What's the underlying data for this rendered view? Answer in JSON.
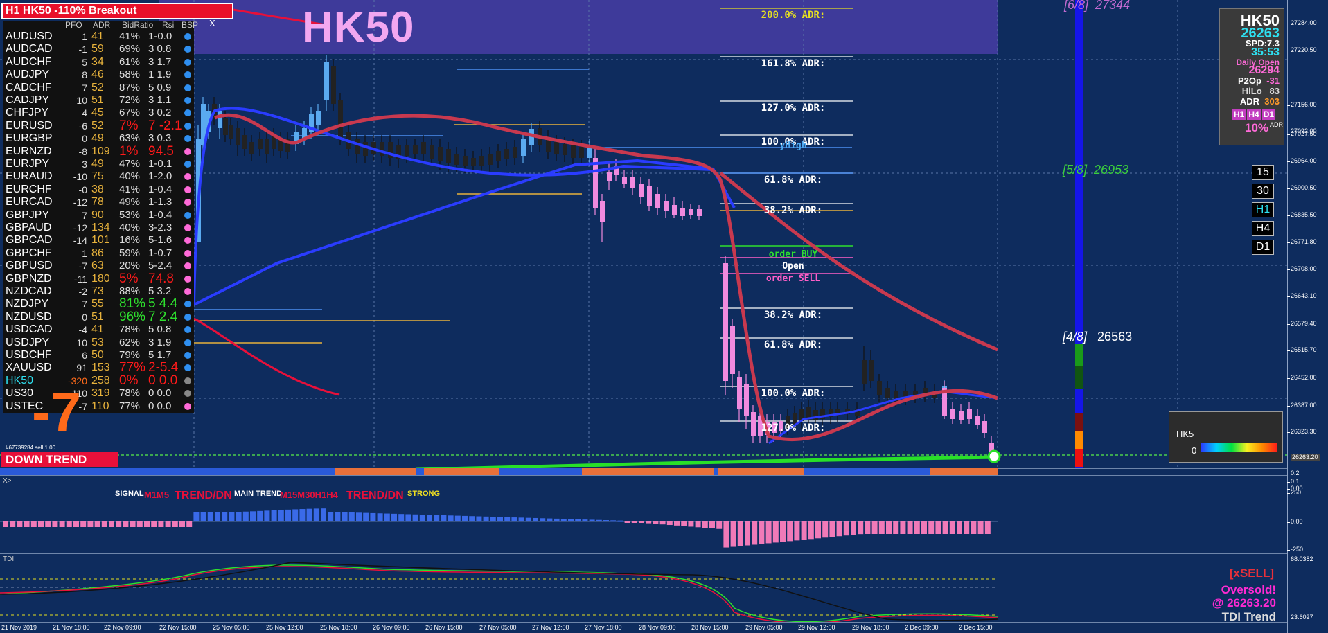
{
  "banner": {
    "text": "H1 HK50  -110% Breakout"
  },
  "symbol_title": "HK50",
  "scanner": {
    "headers": [
      "PFO",
      "ADR",
      "BidRatio",
      "Rsi",
      "BSP"
    ],
    "close_label": "X",
    "rows": [
      {
        "symbol": "AUDUSD",
        "pfo": "1",
        "adr": "41",
        "pct": "41%",
        "br": "1-0.0",
        "dot": "#2f8ff0"
      },
      {
        "symbol": "AUDCAD",
        "pfo": "-1",
        "adr": "59",
        "pct": "69%",
        "br": "3 0.8",
        "dot": "#2f8ff0"
      },
      {
        "symbol": "AUDCHF",
        "pfo": "5",
        "adr": "34",
        "pct": "61%",
        "br": "3 1.7",
        "dot": "#2f8ff0"
      },
      {
        "symbol": "AUDJPY",
        "pfo": "8",
        "adr": "46",
        "pct": "58%",
        "br": "1 1.9",
        "dot": "#2f8ff0"
      },
      {
        "symbol": "CADCHF",
        "pfo": "7",
        "adr": "52",
        "pct": "87%",
        "br": "5 0.9",
        "dot": "#2f8ff0"
      },
      {
        "symbol": "CADJPY",
        "pfo": "10",
        "adr": "51",
        "pct": "72%",
        "br": "3 1.1",
        "dot": "#2f8ff0"
      },
      {
        "symbol": "CHFJPY",
        "pfo": "4",
        "adr": "45",
        "pct": "67%",
        "br": "3 0.2",
        "dot": "#2f8ff0"
      },
      {
        "symbol": "EURUSD",
        "pfo": "-6",
        "adr": "52",
        "pct": "7%",
        "br": "7 -2.1",
        "dot": "#2f8ff0",
        "hot": true
      },
      {
        "symbol": "EURGBP",
        "pfo": "0",
        "adr": "49",
        "pct": "63%",
        "br": "3 0.3",
        "dot": "#2f8ff0"
      },
      {
        "symbol": "EURNZD",
        "pfo": "-8",
        "adr": "109",
        "pct": "1%",
        "br": "94.5",
        "dot": "#ff6ad8",
        "hot": true
      },
      {
        "symbol": "EURJPY",
        "pfo": "3",
        "adr": "49",
        "pct": "47%",
        "br": "1-0.1",
        "dot": "#2f8ff0"
      },
      {
        "symbol": "EURAUD",
        "pfo": "-10",
        "adr": "75",
        "pct": "40%",
        "br": "1-2.0",
        "dot": "#ff6ad8"
      },
      {
        "symbol": "EURCHF",
        "pfo": "-0",
        "adr": "38",
        "pct": "41%",
        "br": "1-0.4",
        "dot": "#ff6ad8"
      },
      {
        "symbol": "EURCAD",
        "pfo": "-12",
        "adr": "78",
        "pct": "49%",
        "br": "1-1.3",
        "dot": "#ff6ad8"
      },
      {
        "symbol": "GBPJPY",
        "pfo": "7",
        "adr": "90",
        "pct": "53%",
        "br": "1-0.4",
        "dot": "#2f8ff0"
      },
      {
        "symbol": "GBPAUD",
        "pfo": "-12",
        "adr": "134",
        "pct": "40%",
        "br": "3-2.3",
        "dot": "#ff6ad8"
      },
      {
        "symbol": "GBPCAD",
        "pfo": "-14",
        "adr": "101",
        "pct": "16%",
        "br": "5-1.6",
        "dot": "#ff6ad8"
      },
      {
        "symbol": "GBPCHF",
        "pfo": "1",
        "adr": "86",
        "pct": "59%",
        "br": "1-0.7",
        "dot": "#ff6ad8"
      },
      {
        "symbol": "GBPUSD",
        "pfo": "-7",
        "adr": "63",
        "pct": "20%",
        "br": "5-2.4",
        "dot": "#ff6ad8"
      },
      {
        "symbol": "GBPNZD",
        "pfo": "-11",
        "adr": "180",
        "pct": "5%",
        "br": "74.8",
        "dot": "#ff6ad8",
        "hot": true
      },
      {
        "symbol": "NZDCAD",
        "pfo": "-2",
        "adr": "73",
        "pct": "88%",
        "br": "5 3.2",
        "dot": "#ff6ad8"
      },
      {
        "symbol": "NZDJPY",
        "pfo": "7",
        "adr": "55",
        "pct": "81%",
        "br": "5 4.4",
        "dot": "#2f8ff0",
        "green": true
      },
      {
        "symbol": "NZDUSD",
        "pfo": "0",
        "adr": "51",
        "pct": "96%",
        "br": "7 2.4",
        "dot": "#2f8ff0",
        "green": true
      },
      {
        "symbol": "USDCAD",
        "pfo": "-4",
        "adr": "41",
        "pct": "78%",
        "br": "5 0.8",
        "dot": "#2f8ff0"
      },
      {
        "symbol": "USDJPY",
        "pfo": "10",
        "adr": "53",
        "pct": "62%",
        "br": "3 1.9",
        "dot": "#2f8ff0"
      },
      {
        "symbol": "USDCHF",
        "pfo": "6",
        "adr": "50",
        "pct": "79%",
        "br": "5 1.7",
        "dot": "#2f8ff0"
      },
      {
        "symbol": "XAUUSD",
        "pfo": "91",
        "adr": "153",
        "pct": "77%",
        "br": "2-5.4",
        "dot": "#2f8ff0",
        "hot": true
      },
      {
        "symbol": "HK50",
        "pfo": "-320",
        "adr": "258",
        "pct": "0%",
        "br": "0 0.0",
        "dot": "#888",
        "cyan": true,
        "hot": true
      },
      {
        "symbol": "US30",
        "pfo": "110",
        "adr": "319",
        "pct": "78%",
        "br": "0 0.0",
        "dot": "#888"
      },
      {
        "symbol": "USTEC",
        "pfo": "-7",
        "adr": "110",
        "pct": "77%",
        "br": "0 0.0",
        "dot": "#ff6ad8"
      }
    ]
  },
  "big_number": "-7",
  "order_id": "#67739284 sell 1.00",
  "down_trend": "DOWN TREND",
  "adr_levels": [
    "200.0% ADR:",
    "161.8% ADR:",
    "127.0% ADR:",
    "100.0% ADR:",
    "61.8% ADR:",
    "38.2% ADR:",
    "38.2% ADR:",
    "61.8% ADR:",
    "100.0% ADR:",
    "127.0% ADR:"
  ],
  "order_labels": {
    "yhigh": "yHigh",
    "order_buy": "order BUY",
    "open": "Open",
    "order_sell": "order SELL"
  },
  "murrey": [
    {
      "label": "[6/8]",
      "value": "27344"
    },
    {
      "label": "[5/8]",
      "value": "26953"
    },
    {
      "label": "[4/8]",
      "value": "26563"
    }
  ],
  "info_panel": {
    "symbol": "HK50",
    "price": "26263",
    "spread": "SPD:7.3",
    "countdown": "35:53",
    "daily_open_label": "Daily Open",
    "daily_open": "26294",
    "p2op_label": "P2Op",
    "p2op": "-31",
    "hilo_label": "HiLo",
    "hilo": "83",
    "adr_label": "ADR",
    "adr": "303",
    "tf": [
      "H1",
      "H4",
      "D1"
    ],
    "pct": "10%",
    "pct_label": "ADR"
  },
  "timeframes": [
    "15",
    "30",
    "H1",
    "H4",
    "D1"
  ],
  "hk_box": {
    "label": "HK5",
    "zero": "0"
  },
  "price_axis": [
    "27284.00",
    "27220.50",
    "27156.00",
    "27092.00",
    "27027.50",
    "26964.00",
    "26900.50",
    "26835.50",
    "26771.80",
    "26708.00",
    "26643.10",
    "26579.40",
    "26515.70",
    "26452.00",
    "26387.00",
    "26323.30",
    "26263.20"
  ],
  "lower_axis": {
    "top1": "0.2",
    "top2": "0.1",
    "top3": "0.00",
    "hist_hi": "250",
    "hist_mid": "0.00",
    "hist_lo": "-250",
    "tdi_hi": "68.0382",
    "tdi_lo": "23.6027"
  },
  "time_axis": [
    "21 Nov 2019",
    "21 Nov 18:00",
    "22 Nov 09:00",
    "22 Nov 15:00",
    "25 Nov 05:00",
    "25 Nov 12:00",
    "25 Nov 18:00",
    "26 Nov 09:00",
    "26 Nov 15:00",
    "27 Nov 05:00",
    "27 Nov 12:00",
    "27 Nov 18:00",
    "28 Nov 09:00",
    "28 Nov 15:00",
    "29 Nov 05:00",
    "29 Nov 12:00",
    "29 Nov 18:00",
    "2 Dec 09:00",
    "2 Dec 15:00"
  ],
  "signal": {
    "x_label": "X>",
    "signal": "SIGNAL",
    "m1m5": "M1M5",
    "trend_dn1": "TREND/DN",
    "main_trend": "MAIN TREND",
    "m15": "M15M30H1H4",
    "trend_dn2": "TREND/DN",
    "strong": "STRONG"
  },
  "tdi": {
    "label": "TDI",
    "xsell": "[xSELL]",
    "oversold": "Oversold!",
    "at_price": "@ 26263.20",
    "trend": "TDI Trend"
  },
  "colors": {
    "bg": "#0e2c5e",
    "bull": "#5aaaf0",
    "bear": "#f08ade",
    "ema_blue": "#2a3cff",
    "ema_red": "#d6354a",
    "accent_red": "#e8102a"
  }
}
